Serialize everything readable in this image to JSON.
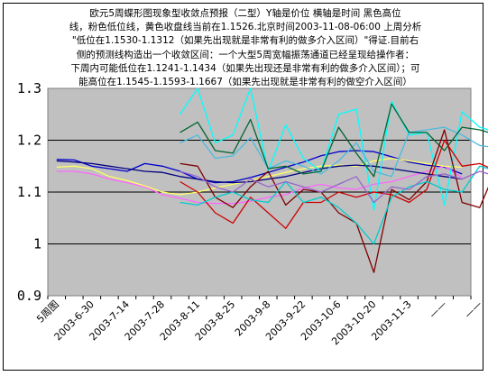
{
  "chart_data": {
    "type": "line",
    "title_lines": [
      "欧元5周蝶形图现象型收敛点预报（二型）Y轴是价位 横轴是时间 黑色高位",
      "线，粉色低位线，黄色收盘线当前在1.1526.北京时间2003-11-08-06:00 上周分析",
      "\"低位在1.1530-1.1312（如果先出现就是非常有利的做多介入区间）\"得证.目前右",
      "侧的预测线构造出一个收敛区间：一个大型5周宽幅振荡通道已经呈现给操作者：",
      "下周内可能低位在1.1241-1.1434（如果先出现还是非常有利的做多介入区间）；可",
      "能高位在1.1545-1.1593-1.1667（如果先出现就是非常有利的做空介入区间）"
    ],
    "ylim": [
      0.9,
      1.3
    ],
    "yticks": [
      "0.9",
      "1",
      "1.1",
      "1.2",
      "1.3"
    ],
    "yvalues": [
      0.9,
      1.0,
      1.1,
      1.2,
      1.3
    ],
    "grid": true,
    "background": "#c0c0c0",
    "x_tick_labels": [
      "5周图",
      "2003-6-30",
      "2003-7-14",
      "2003-7-28",
      "2003-8-11",
      "2003-8-25",
      "2003-9-8",
      "2003-9-22",
      "2003-10-6",
      "2003-10-20",
      "2003-11-3",
      "——",
      "——"
    ],
    "n_points": 24,
    "series": [
      {
        "color": "#0000cc",
        "values": [
          1.163,
          1.162,
          1.15,
          1.145,
          1.14,
          1.155,
          1.15,
          1.14,
          1.125,
          1.118,
          1.12,
          1.128,
          1.138,
          1.148,
          1.158,
          1.17,
          1.178,
          1.18,
          1.178,
          1.168,
          1.158,
          1.152,
          1.148,
          1.135
        ]
      },
      {
        "color": "#ff66ff",
        "values": [
          1.14,
          1.14,
          1.135,
          1.125,
          1.118,
          1.11,
          1.095,
          1.088,
          1.08,
          1.078,
          1.078,
          1.082,
          1.09,
          1.095,
          1.108,
          1.115,
          1.108,
          1.105,
          1.115,
          1.12,
          1.13,
          1.14,
          1.15,
          1.128
        ]
      },
      {
        "color": "#ffff66",
        "values": [
          1.148,
          1.15,
          1.145,
          1.13,
          1.122,
          1.112,
          1.1,
          1.095,
          1.1,
          1.108,
          1.115,
          1.122,
          1.13,
          1.138,
          1.145,
          1.15,
          1.152,
          1.15,
          1.16,
          1.165,
          1.16,
          1.155,
          1.15,
          1.148
        ]
      },
      {
        "color": "#000080",
        "values": [
          1.16,
          1.158,
          1.155,
          1.15,
          1.145,
          1.14,
          1.138,
          1.13,
          1.125,
          1.12,
          1.118,
          1.12,
          1.125,
          1.13,
          1.138,
          1.145,
          1.15,
          1.152,
          1.15,
          1.145,
          1.14,
          1.135,
          1.13,
          1.125
        ]
      },
      {
        "color": "#00ffff",
        "start": 7,
        "values": [
          1.25,
          1.3,
          1.195,
          1.21,
          1.3,
          1.14,
          1.23,
          1.165,
          1.14,
          1.25,
          1.26,
          1.065,
          1.275,
          1.21,
          1.215,
          1.075,
          1.255,
          1.225,
          1.215,
          1.195,
          1.19,
          1.275
        ]
      },
      {
        "color": "#4bbbe0",
        "start": 7,
        "values": [
          1.195,
          1.21,
          1.165,
          1.17,
          1.205,
          1.145,
          1.16,
          1.15,
          1.135,
          1.16,
          1.195,
          1.14,
          1.13,
          1.215,
          1.22,
          1.225,
          1.21,
          1.19,
          1.185,
          1.17,
          1.175,
          1.185
        ]
      },
      {
        "color": "#006633",
        "start": 7,
        "values": [
          1.215,
          1.235,
          1.18,
          1.175,
          1.24,
          1.145,
          1.15,
          1.135,
          1.14,
          1.225,
          1.175,
          1.13,
          1.27,
          1.215,
          1.215,
          1.18,
          1.225,
          1.22,
          1.21,
          1.215,
          1.2,
          1.225
        ]
      },
      {
        "color": "#800000",
        "start": 7,
        "values": [
          1.155,
          1.15,
          1.09,
          1.07,
          1.11,
          1.14,
          1.075,
          1.105,
          1.1,
          1.06,
          1.04,
          0.945,
          1.105,
          1.085,
          1.12,
          1.22,
          1.08,
          1.07,
          1.15,
          1.09,
          1.115,
          1.045
        ]
      },
      {
        "color": "#cc0000",
        "start": 7,
        "values": [
          1.12,
          1.1,
          1.06,
          1.04,
          1.09,
          1.06,
          1.03,
          1.08,
          1.08,
          1.1,
          1.09,
          1.1,
          1.095,
          1.08,
          1.105,
          1.2,
          1.15,
          1.155,
          1.14,
          1.14,
          1.145,
          1.13
        ]
      },
      {
        "color": "#00cccc",
        "start": 7,
        "values": [
          1.08,
          1.075,
          1.09,
          1.1,
          1.085,
          1.08,
          1.12,
          1.08,
          1.09,
          1.07,
          1.04,
          1.0,
          1.09,
          1.11,
          1.12,
          1.105,
          1.1,
          1.15,
          1.14,
          1.14,
          1.13,
          1.15
        ]
      },
      {
        "color": "#9966cc",
        "start": 7,
        "values": [
          1.14,
          1.13,
          1.11,
          1.1,
          1.125,
          1.11,
          1.12,
          1.11,
          1.1,
          1.115,
          1.13,
          1.08,
          1.11,
          1.105,
          1.13,
          1.135,
          1.125,
          1.14,
          1.13,
          1.135,
          1.13,
          1.125
        ]
      }
    ]
  }
}
